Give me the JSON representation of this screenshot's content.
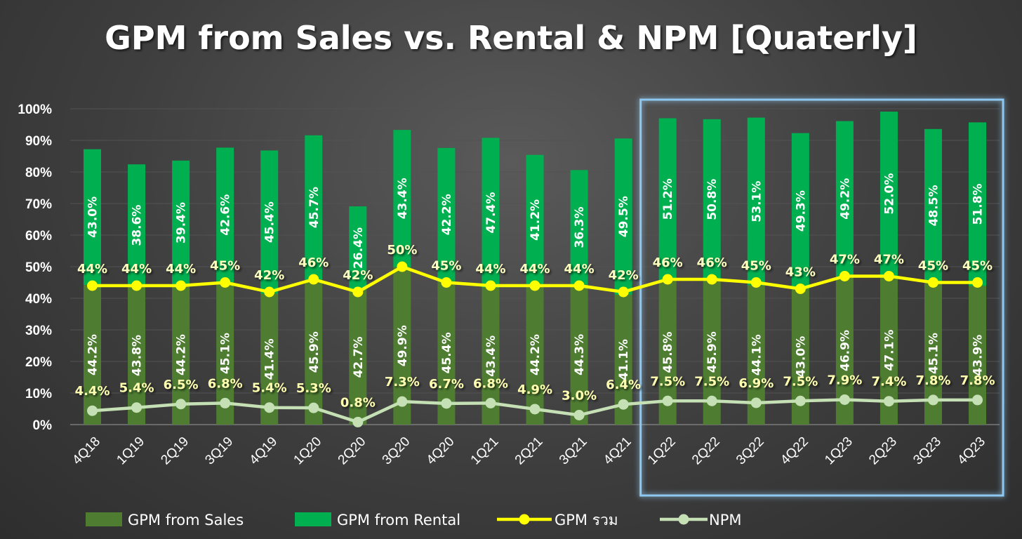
{
  "chart_data": {
    "type": "bar",
    "title": "GPM from Sales vs. Rental & NPM [Quaterly]",
    "categories": [
      "4Q18",
      "1Q19",
      "2Q19",
      "3Q19",
      "4Q19",
      "1Q20",
      "2Q20",
      "3Q20",
      "4Q20",
      "1Q21",
      "2Q21",
      "3Q21",
      "4Q21",
      "1Q22",
      "2Q22",
      "3Q22",
      "4Q22",
      "1Q23",
      "2Q23",
      "3Q23",
      "4Q23"
    ],
    "yticks": [
      "0%",
      "10%",
      "20%",
      "30%",
      "40%",
      "50%",
      "60%",
      "70%",
      "80%",
      "90%",
      "100%"
    ],
    "ylim": [
      0,
      100
    ],
    "series": [
      {
        "name": "GPM from Sales",
        "kind": "bar",
        "color": "#4e7d32",
        "values": [
          44.2,
          43.8,
          44.2,
          45.1,
          41.4,
          45.9,
          42.7,
          49.9,
          45.4,
          43.4,
          44.2,
          44.3,
          41.1,
          45.8,
          45.9,
          44.1,
          43.0,
          46.9,
          47.1,
          45.1,
          43.9
        ],
        "labels": [
          "44.2%",
          "43.8%",
          "44.2%",
          "45.1%",
          "41.4%",
          "45.9%",
          "42.7%",
          "49.9%",
          "45.4%",
          "43.4%",
          "44.2%",
          "44.3%",
          "41.1%",
          "45.8%",
          "45.9%",
          "44.1%",
          "43.0%",
          "46.9%",
          "47.1%",
          "45.1%",
          "43.9%"
        ]
      },
      {
        "name": "GPM from Rental",
        "kind": "bar",
        "color": "#00b050",
        "values": [
          43.0,
          38.6,
          39.4,
          42.6,
          45.4,
          45.7,
          26.4,
          43.4,
          42.2,
          47.4,
          41.2,
          36.3,
          49.5,
          51.2,
          50.8,
          53.1,
          49.3,
          49.2,
          52.0,
          48.5,
          51.8
        ],
        "labels": [
          "43.0%",
          "38.6%",
          "39.4%",
          "42.6%",
          "45.4%",
          "45.7%",
          "26.4%",
          "43.4%",
          "42.2%",
          "47.4%",
          "41.2%",
          "36.3%",
          "49.5%",
          "51.2%",
          "50.8%",
          "53.1%",
          "49.3%",
          "49.2%",
          "52.0%",
          "48.5%",
          "51.8%"
        ]
      },
      {
        "name": "GPM รวม",
        "kind": "line",
        "color": "#ffff00",
        "values": [
          44,
          44,
          44,
          45,
          42,
          46,
          42,
          50,
          45,
          44,
          44,
          44,
          42,
          46,
          46,
          45,
          43,
          47,
          47,
          45,
          45
        ],
        "labels": [
          "44%",
          "44%",
          "44%",
          "45%",
          "42%",
          "46%",
          "42%",
          "50%",
          "45%",
          "44%",
          "44%",
          "44%",
          "42%",
          "46%",
          "46%",
          "45%",
          "43%",
          "47%",
          "47%",
          "45%",
          "45%"
        ]
      },
      {
        "name": "NPM",
        "kind": "line",
        "color": "#c5e0b4",
        "values": [
          4.4,
          5.4,
          6.5,
          6.8,
          5.4,
          5.3,
          0.8,
          7.3,
          6.7,
          6.8,
          4.9,
          3.0,
          6.4,
          7.5,
          7.5,
          6.9,
          7.5,
          7.9,
          7.4,
          7.8,
          7.8
        ],
        "labels": [
          "4.4%",
          "5.4%",
          "6.5%",
          "6.8%",
          "5.4%",
          "5.3%",
          "0.8%",
          "7.3%",
          "6.7%",
          "6.8%",
          "4.9%",
          "3.0%",
          "6.4%",
          "7.5%",
          "7.5%",
          "6.9%",
          "7.5%",
          "7.9%",
          "7.4%",
          "7.8%",
          "7.8%"
        ]
      }
    ],
    "highlight": {
      "from": "1Q22",
      "to": "4Q23",
      "color": "#8ec8f0"
    },
    "legend": [
      "GPM from Sales",
      "GPM from Rental",
      "GPM รวม",
      "NPM"
    ]
  }
}
